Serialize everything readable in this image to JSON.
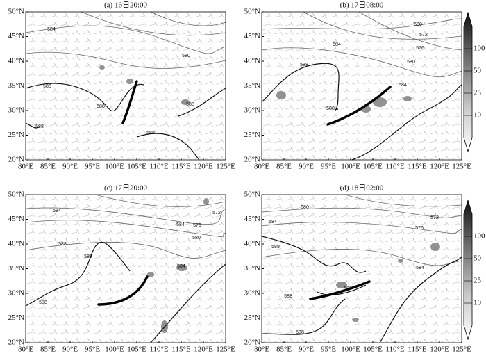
{
  "lat_labels": [
    "50°N",
    "45°N",
    "40°N",
    "35°N",
    "30°N",
    "25°N",
    "20°N"
  ],
  "lon_labels": [
    "80°E",
    "85°E",
    "90°E",
    "95°E",
    "100°E",
    "105°E",
    "110°E",
    "115°E",
    "120°E",
    "125°E"
  ],
  "panels": [
    {
      "title": "(a) 16日20:00",
      "contour_labels": [
        584,
        580,
        588,
        588,
        588,
        588,
        588
      ]
    },
    {
      "title": "(b) 17日08:00",
      "contour_labels": [
        580,
        572,
        584,
        576,
        580,
        588,
        584,
        588
      ]
    },
    {
      "title": "(c) 17日20:00",
      "contour_labels": [
        572,
        584,
        584,
        576,
        580,
        588,
        588,
        584,
        588
      ]
    },
    {
      "title": "(d) 18日02:00",
      "contour_labels": [
        580,
        572,
        584,
        576,
        588,
        584,
        588,
        588,
        588
      ]
    }
  ],
  "colorbar_ticks": [
    10,
    25,
    50,
    100
  ]
}
